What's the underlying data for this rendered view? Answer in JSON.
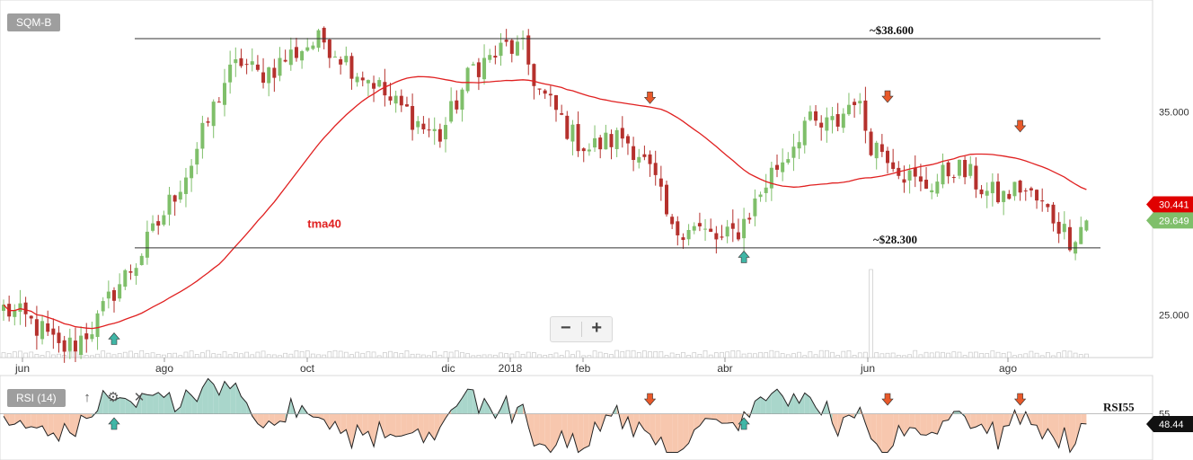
{
  "ticker": "SQM-B",
  "rsi_label": "RSI (14)",
  "icons": {
    "up": "arrow-up-icon",
    "settings": "gear-icon",
    "close": "close-icon",
    "zoom_out": "minus-icon",
    "zoom_in": "plus-icon"
  },
  "zoom": {
    "minus": "−",
    "plus": "+"
  },
  "colors": {
    "candle_up": "#7fbf6a",
    "candle_down": "#b5312d",
    "ma": "#e02020",
    "rsi_above": "#a9d6cb",
    "rsi_below": "#f7c7ae",
    "signal_down": "#e8592a",
    "signal_up": "#40b6a6",
    "last_price": "#7fbf6a",
    "ma_badge": "#e00000"
  },
  "chart_data": [
    {
      "type": "candlestick",
      "title": "",
      "yticks": [
        25,
        35
      ],
      "ylim": [
        22.9,
        40.5
      ],
      "x_labels": [
        "jun",
        "ago",
        "oct",
        "dic",
        "2018",
        "feb",
        "abr",
        "jun",
        "ago"
      ],
      "close_path": [
        [
          0,
          25.3
        ],
        [
          4,
          24.8
        ],
        [
          7,
          24.2
        ],
        [
          10,
          23.3
        ],
        [
          13,
          23.6
        ],
        [
          17,
          24.7
        ],
        [
          20,
          26.2
        ],
        [
          24,
          27.6
        ],
        [
          28,
          29.5
        ],
        [
          31,
          31.0
        ],
        [
          34,
          32.5
        ],
        [
          37,
          34.5
        ],
        [
          40,
          36.5
        ],
        [
          43,
          37.5
        ],
        [
          46,
          36.8
        ],
        [
          49,
          37.2
        ],
        [
          52,
          37.8
        ],
        [
          55,
          38.3
        ],
        [
          58,
          38.5
        ],
        [
          61,
          37.8
        ],
        [
          64,
          37.0
        ],
        [
          67,
          36.5
        ],
        [
          70,
          35.5
        ],
        [
          73,
          35.0
        ],
        [
          76,
          34.2
        ],
        [
          79,
          33.8
        ],
        [
          82,
          35.5
        ],
        [
          85,
          37.2
        ],
        [
          88,
          37.6
        ],
        [
          91,
          38.2
        ],
        [
          94,
          38.0
        ],
        [
          97,
          36.0
        ],
        [
          100,
          35.0
        ],
        [
          103,
          33.8
        ],
        [
          106,
          33.2
        ],
        [
          109,
          33.5
        ],
        [
          112,
          33.8
        ],
        [
          115,
          33.0
        ],
        [
          118,
          31.5
        ],
        [
          121,
          29.0
        ],
        [
          124,
          29.5
        ],
        [
          127,
          29.0
        ],
        [
          130,
          28.6
        ],
        [
          133,
          29.2
        ],
        [
          136,
          30.5
        ],
        [
          139,
          32.0
        ],
        [
          142,
          33.0
        ],
        [
          145,
          34.5
        ],
        [
          148,
          34.2
        ],
        [
          151,
          34.5
        ],
        [
          154,
          35.8
        ],
        [
          157,
          33.5
        ],
        [
          160,
          33.0
        ],
        [
          163,
          32.0
        ],
        [
          166,
          31.3
        ],
        [
          169,
          31.6
        ],
        [
          172,
          32.3
        ],
        [
          175,
          31.8
        ],
        [
          178,
          31.0
        ],
        [
          181,
          30.8
        ],
        [
          184,
          31.3
        ],
        [
          187,
          30.6
        ],
        [
          190,
          29.8
        ],
        [
          193,
          28.8
        ],
        [
          196,
          29.6
        ]
      ],
      "ma_label": "tma40",
      "ma_last": "30.441",
      "last_price": "29.649",
      "levels": [
        {
          "value": 38.6,
          "label": "~$38.600"
        },
        {
          "value": 28.3,
          "label": "~$28.300"
        }
      ],
      "signals": [
        {
          "type": "up",
          "index": 20
        },
        {
          "type": "down",
          "index": 117
        },
        {
          "type": "up",
          "index": 134
        },
        {
          "type": "down",
          "index": 160
        },
        {
          "type": "down",
          "index": 184
        }
      ],
      "volume_spike_index": 157
    },
    {
      "type": "area",
      "title": "RSI (14)",
      "reference": {
        "value": 55,
        "label": "RSI55"
      },
      "ylim": [
        25,
        80
      ],
      "last_value": "48.44",
      "ytick": "55"
    }
  ]
}
